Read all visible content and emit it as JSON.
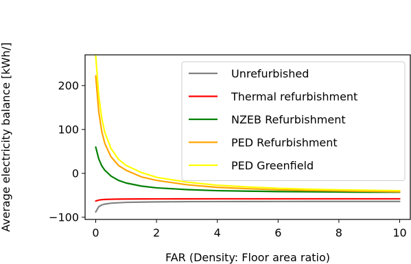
{
  "chart_data": {
    "type": "line",
    "title": "",
    "xlabel": "FAR (Density: Floor area ratio)",
    "ylabel": "Average electricity balance [kWh/]",
    "xlim": [
      -0.35,
      10.35
    ],
    "ylim": [
      -105,
      270
    ],
    "xticks": [
      0,
      2,
      4,
      6,
      8,
      10
    ],
    "yticks": [
      -100,
      0,
      100,
      200
    ],
    "xtick_labels": [
      "0",
      "2",
      "4",
      "6",
      "8",
      "10"
    ],
    "ytick_labels": [
      "−100",
      "0",
      "100",
      "200"
    ],
    "grid": false,
    "legend": "top-right",
    "series": [
      {
        "name": "Unrefurbished",
        "color": "#808080",
        "x": [
          0,
          0.1,
          0.2,
          0.3,
          0.5,
          0.75,
          1,
          1.5,
          2,
          3,
          4,
          5,
          6,
          7,
          8,
          9,
          10
        ],
        "y": [
          -88,
          -76,
          -72,
          -70,
          -68,
          -67,
          -66,
          -65.5,
          -65,
          -64.5,
          -64.3,
          -64.2,
          -64.1,
          -64,
          -64,
          -64,
          -64
        ]
      },
      {
        "name": "Thermal refurbishment",
        "color": "#ff0000",
        "x": [
          0,
          0.1,
          0.2,
          0.3,
          0.5,
          0.75,
          1,
          1.5,
          2,
          3,
          4,
          5,
          6,
          7,
          8,
          9,
          10
        ],
        "y": [
          -63,
          -61,
          -60,
          -59.5,
          -59,
          -58.7,
          -58.5,
          -58.3,
          -58.2,
          -58.1,
          -58,
          -58,
          -58,
          -58,
          -58,
          -58,
          -58
        ]
      },
      {
        "name": "NZEB Refurbishment",
        "color": "#008000",
        "x": [
          0,
          0.1,
          0.2,
          0.3,
          0.5,
          0.75,
          1,
          1.5,
          2,
          3,
          4,
          5,
          6,
          7,
          8,
          9,
          10
        ],
        "y": [
          60,
          33,
          17,
          7,
          -6,
          -16,
          -22,
          -29,
          -33,
          -37,
          -39.5,
          -40.5,
          -41.5,
          -42,
          -42.5,
          -43,
          -43
        ]
      },
      {
        "name": "PED Refurbishment",
        "color": "#ffa500",
        "x": [
          0,
          0.1,
          0.2,
          0.3,
          0.5,
          0.75,
          1,
          1.5,
          2,
          3,
          4,
          5,
          6,
          7,
          8,
          9,
          10
        ],
        "y": [
          222,
          140,
          95,
          68,
          38,
          18,
          7,
          -8,
          -16,
          -26,
          -32,
          -35,
          -37.5,
          -39,
          -40,
          -41,
          -42
        ]
      },
      {
        "name": "PED Greenfield",
        "color": "#ffff00",
        "x": [
          0,
          0.1,
          0.2,
          0.3,
          0.5,
          0.75,
          1,
          1.5,
          2,
          3,
          4,
          5,
          6,
          7,
          8,
          9,
          10
        ],
        "y": [
          268,
          178,
          125,
          93,
          57,
          32,
          18,
          2,
          -9,
          -20,
          -27,
          -31,
          -34,
          -36,
          -37.5,
          -38.5,
          -39.5
        ]
      }
    ]
  }
}
